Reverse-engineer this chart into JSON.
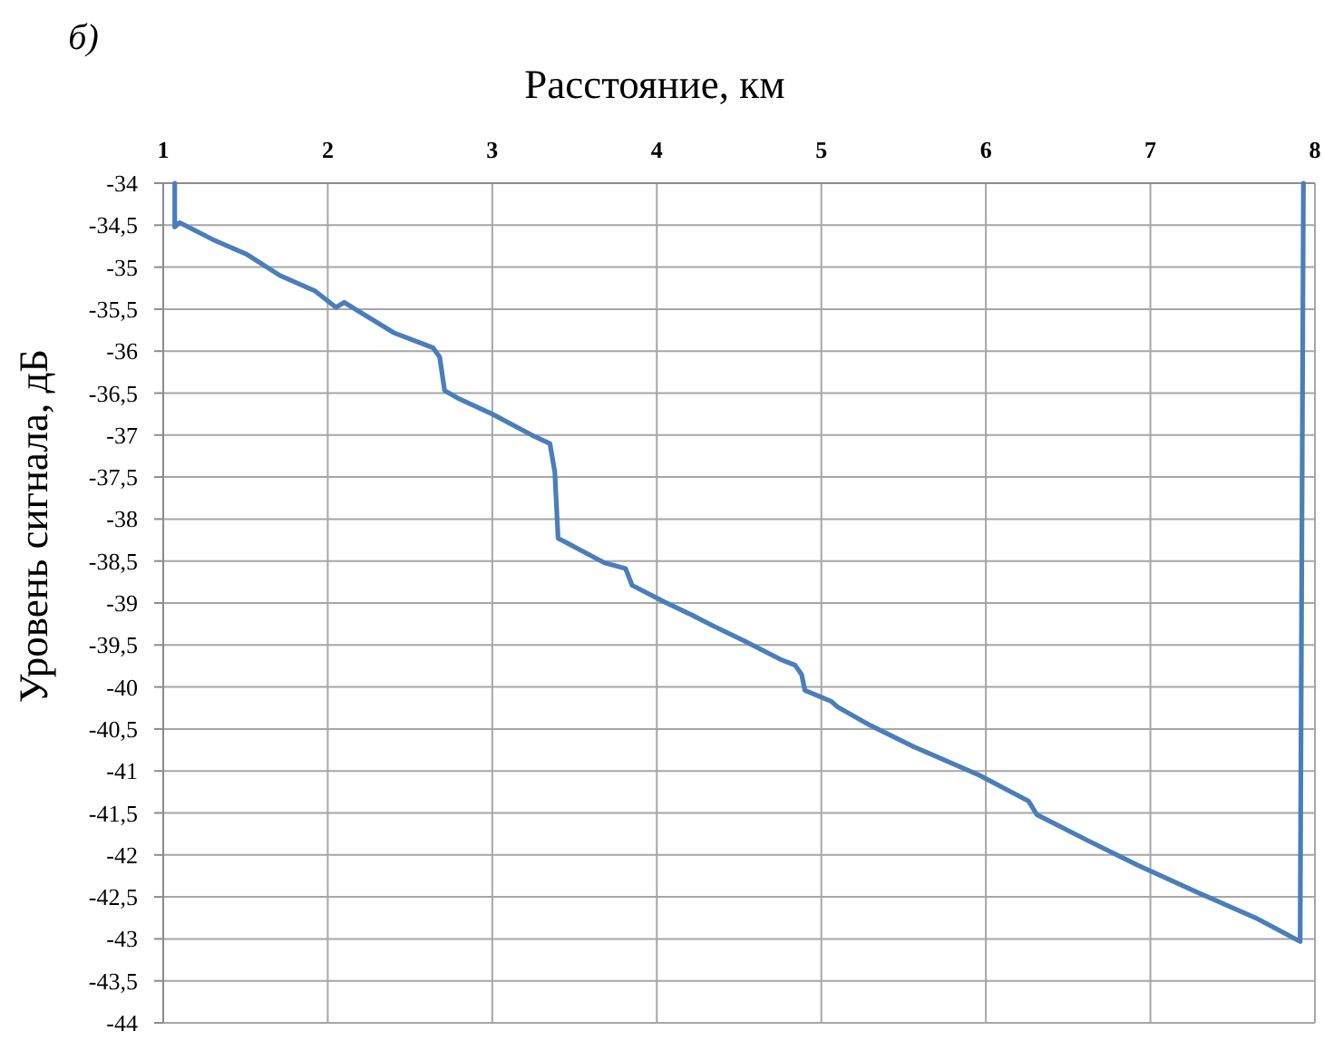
{
  "chart_data": {
    "type": "line",
    "title": "б)",
    "xlabel": "Расстояние, км",
    "ylabel": "Уровень сигнала, дБ",
    "x": [
      1.07,
      1.07,
      1.1,
      1.3,
      1.51,
      1.71,
      1.92,
      2.05,
      2.1,
      2.4,
      2.64,
      2.68,
      2.71,
      2.8,
      3.0,
      3.24,
      3.35,
      3.38,
      3.4,
      3.44,
      3.68,
      3.81,
      3.85,
      4.05,
      4.2,
      4.34,
      4.53,
      4.75,
      4.84,
      4.88,
      4.9,
      5.06,
      5.1,
      5.3,
      5.56,
      5.96,
      6.26,
      6.31,
      6.62,
      6.92,
      7.28,
      7.65,
      7.91,
      7.93
    ],
    "series": [
      {
        "color": "#4a7ebb",
        "values": [
          -34,
          -34.52,
          -34.47,
          -34.67,
          -34.85,
          -35.1,
          -35.28,
          -35.48,
          -35.42,
          -35.78,
          -35.96,
          -36.07,
          -36.47,
          -36.57,
          -36.75,
          -37.0,
          -37.1,
          -37.44,
          -38.23,
          -38.27,
          -38.52,
          -38.59,
          -38.79,
          -38.99,
          -39.13,
          -39.27,
          -39.45,
          -39.67,
          -39.74,
          -39.85,
          -40.04,
          -40.17,
          -40.24,
          -40.46,
          -40.71,
          -41.05,
          -41.36,
          -41.52,
          -41.83,
          -42.12,
          -42.44,
          -42.76,
          -43.03,
          -34
        ]
      }
    ],
    "xlim": [
      1,
      8
    ],
    "xticks": [
      1,
      2,
      3,
      4,
      5,
      6,
      7,
      8
    ],
    "ylim": [
      -44,
      -34
    ],
    "yticks": [
      -34,
      {
        "value": -34.5,
        "label": "-34,5"
      },
      -35,
      {
        "value": -35.5,
        "label": "-35,5"
      },
      -36,
      {
        "value": -36.5,
        "label": "-36,5"
      },
      -37,
      {
        "value": -37.5,
        "label": "-37,5"
      },
      -38,
      {
        "value": -38.5,
        "label": "-38,5"
      },
      -39,
      {
        "value": -39.5,
        "label": "-39,5"
      },
      -40,
      {
        "value": -40.5,
        "label": "-40,5"
      },
      -41,
      {
        "value": -41.5,
        "label": "-41,5"
      },
      -42,
      {
        "value": -42.5,
        "label": "-42,5"
      },
      -43,
      {
        "value": -43.5,
        "label": "-43,5"
      },
      -44
    ],
    "grid": true,
    "line_style": "solid"
  }
}
